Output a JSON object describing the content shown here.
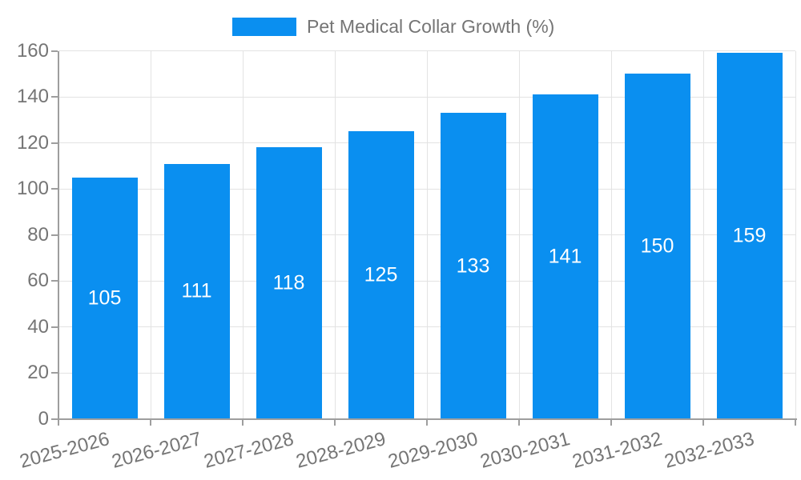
{
  "legend": {
    "label": "Pet Medical Collar Growth (%)"
  },
  "chart_data": {
    "type": "bar",
    "title": "Pet Medical Collar Growth (%)",
    "categories": [
      "2025-2026",
      "2026-2027",
      "2027-2028",
      "2028-2029",
      "2029-2030",
      "2030-2031",
      "2031-2032",
      "2032-2033"
    ],
    "values": [
      105,
      111,
      118,
      125,
      133,
      141,
      150,
      159
    ],
    "series": [
      {
        "name": "Pet Medical Collar Growth (%)",
        "values": [
          105,
          111,
          118,
          125,
          133,
          141,
          150,
          159
        ]
      }
    ],
    "xlabel": "",
    "ylabel": "",
    "ylim": [
      0,
      160
    ],
    "ytick_step": 20,
    "yticks": [
      0,
      20,
      40,
      60,
      80,
      100,
      120,
      140,
      160
    ],
    "grid": true,
    "legend_position": "top-center",
    "value_labels": "inside-center",
    "x_label_rotation_deg": 15,
    "colors": {
      "bar": "#0a8ff0",
      "value_label": "#ffffff",
      "axis_text": "#757575",
      "axis_line": "#9e9e9e",
      "gridline": "#e3e3e3",
      "background": "#ffffff"
    }
  }
}
